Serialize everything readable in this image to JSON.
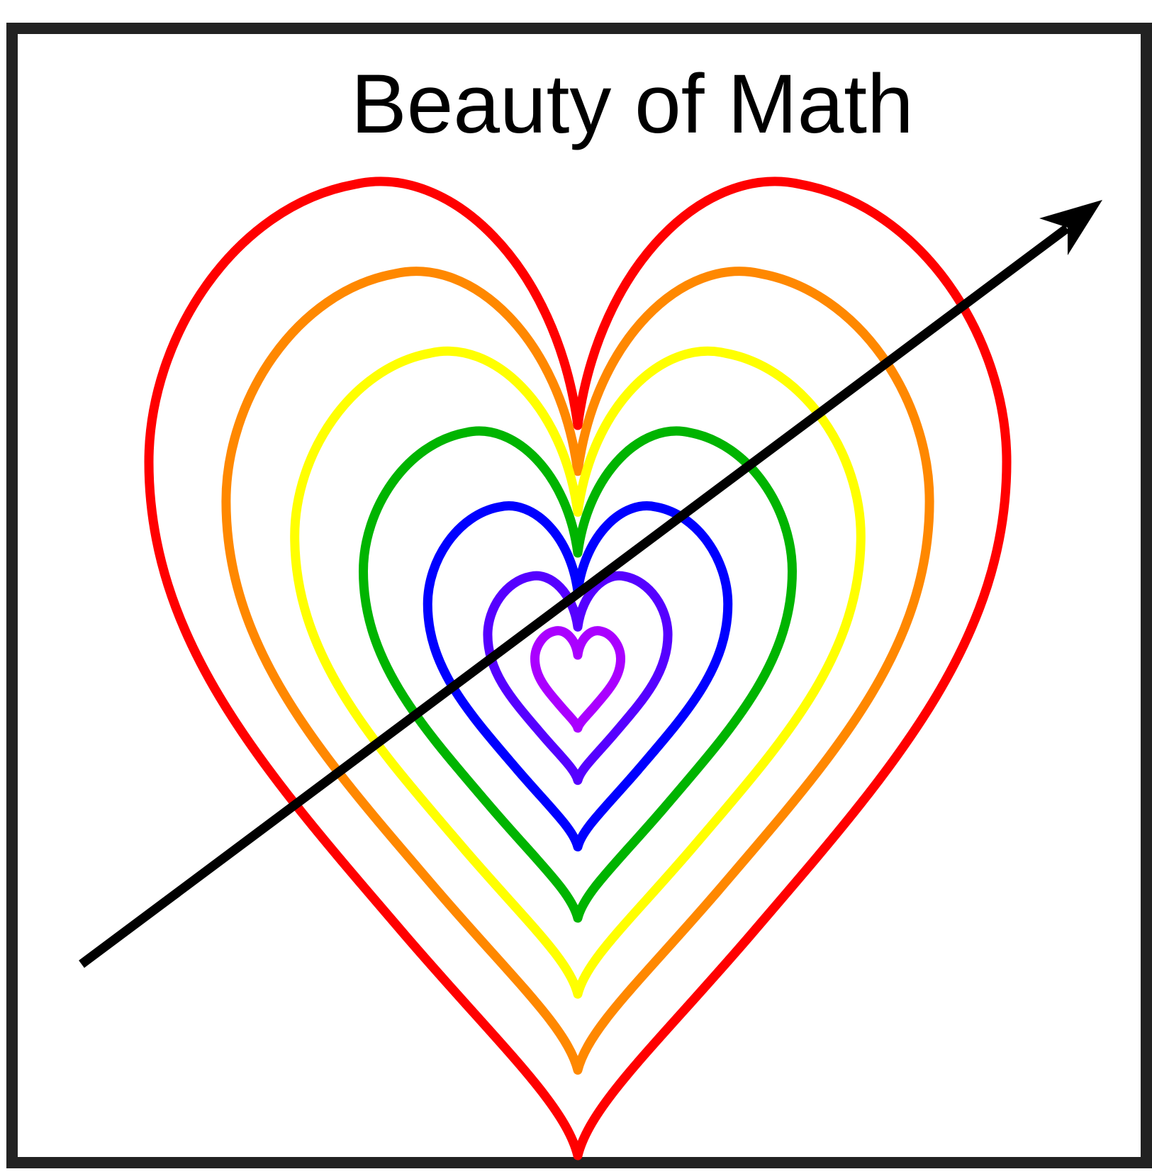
{
  "title": "Beauty of Math",
  "hearts": [
    {
      "color": "#ff0000",
      "scale": 1.0
    },
    {
      "color": "#ff8800",
      "scale": 0.82
    },
    {
      "color": "#ffff00",
      "scale": 0.66
    },
    {
      "color": "#00b400",
      "scale": 0.5
    },
    {
      "color": "#0000ff",
      "scale": 0.35
    },
    {
      "color": "#5500ff",
      "scale": 0.21
    },
    {
      "color": "#aa00ff",
      "scale": 0.1
    }
  ],
  "arrow": {
    "color": "#000000"
  }
}
